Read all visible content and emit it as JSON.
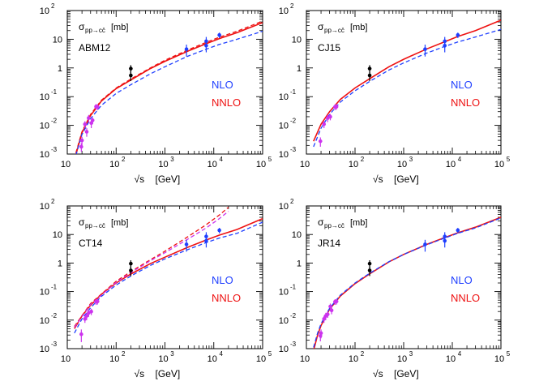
{
  "chart_data": [
    {
      "type": "line",
      "panel_label": "ABM12",
      "ylabel": "σ_{pp→cc̄} [mb]",
      "ylabel_main": "σ",
      "ylabel_sub": "pp→cc̄",
      "ylabel_unit": "[mb]",
      "xlabel_prefix": "√s",
      "xlabel_unit": "[GeV]",
      "xscale": "log",
      "yscale": "log",
      "xlim": [
        10,
        100000
      ],
      "ylim": [
        0.001,
        100
      ],
      "x_ticks": [
        {
          "v": 10,
          "base": "10",
          "exp": ""
        },
        {
          "v": 100,
          "base": "10",
          "exp": "2"
        },
        {
          "v": 1000,
          "base": "10",
          "exp": "3"
        },
        {
          "v": 10000,
          "base": "10",
          "exp": "4"
        },
        {
          "v": 100000,
          "base": "10",
          "exp": "5"
        }
      ],
      "y_ticks": [
        {
          "v": 0.001,
          "base": "10",
          "exp": "-3"
        },
        {
          "v": 0.01,
          "base": "10",
          "exp": "-2"
        },
        {
          "v": 0.1,
          "base": "10",
          "exp": "-1"
        },
        {
          "v": 1,
          "base": "1",
          "exp": ""
        },
        {
          "v": 10,
          "base": "10",
          "exp": ""
        },
        {
          "v": 100,
          "base": "10",
          "exp": "2"
        }
      ],
      "legend": [
        {
          "label": "NLO",
          "color": "#1f3fff"
        },
        {
          "label": "NNLO",
          "color": "#ee1111"
        }
      ],
      "series": [
        {
          "name": "NNLO",
          "color": "#ee1111",
          "style": "solid",
          "x": [
            15,
            20,
            30,
            50,
            100,
            200,
            500,
            1000,
            3000,
            7000,
            13000,
            30000,
            100000
          ],
          "y": [
            0.00095,
            0.0055,
            0.022,
            0.07,
            0.19,
            0.38,
            0.95,
            1.7,
            3.9,
            7.0,
            10.5,
            17,
            38
          ]
        },
        {
          "name": "NNLO band edge",
          "color": "#ee1111",
          "style": "dashed",
          "x": [
            15,
            20,
            30,
            50,
            100,
            200,
            500,
            1000,
            3000,
            7000,
            13000,
            30000,
            100000
          ],
          "y": [
            0.0011,
            0.006,
            0.024,
            0.075,
            0.2,
            0.41,
            1.0,
            1.85,
            4.3,
            7.8,
            11.8,
            19,
            43
          ]
        },
        {
          "name": "NLO",
          "color": "#1f3fff",
          "style": "dashed",
          "x": [
            15,
            20,
            30,
            50,
            100,
            200,
            500,
            1000,
            3000,
            7000,
            13000,
            30000,
            100000
          ],
          "y": [
            0.0009,
            0.0048,
            0.017,
            0.05,
            0.13,
            0.26,
            0.62,
            1.1,
            2.6,
            4.5,
            6.6,
            10,
            19
          ]
        }
      ],
      "data_points": [
        {
          "group": "fixed-target",
          "color": "#cc33ee",
          "x": [
            19.4,
            20,
            23,
            25,
            27.4,
            31,
            33,
            38.8,
            41.6
          ],
          "y": [
            0.0018,
            0.003,
            0.011,
            0.006,
            0.018,
            0.012,
            0.015,
            0.045,
            0.044
          ],
          "err": [
            0.0006,
            0.001,
            0.003,
            0.002,
            0.005,
            0.004,
            0.004,
            0.01,
            0.01
          ]
        },
        {
          "group": "RHIC",
          "color": "#000000",
          "x": [
            200,
            200
          ],
          "y": [
            0.95,
            0.55
          ],
          "err": [
            0.3,
            0.2
          ]
        },
        {
          "group": "LHC",
          "color": "#1f3fff",
          "x": [
            2760,
            7000,
            7000,
            13000
          ],
          "y": [
            4.5,
            6.0,
            8.5,
            14
          ],
          "err": [
            2.0,
            2.5,
            3.5,
            3.0
          ]
        }
      ]
    },
    {
      "type": "line",
      "panel_label": "CJ15",
      "ylabel": "σ_{pp→cc̄} [mb]",
      "ylabel_main": "σ",
      "ylabel_sub": "pp→cc̄",
      "ylabel_unit": "[mb]",
      "xlabel_prefix": "√s",
      "xlabel_unit": "[GeV]",
      "xscale": "log",
      "yscale": "log",
      "xlim": [
        10,
        100000
      ],
      "ylim": [
        0.001,
        100
      ],
      "x_ticks": [
        {
          "v": 10,
          "base": "10",
          "exp": ""
        },
        {
          "v": 100,
          "base": "10",
          "exp": "2"
        },
        {
          "v": 1000,
          "base": "10",
          "exp": "3"
        },
        {
          "v": 10000,
          "base": "10",
          "exp": "4"
        },
        {
          "v": 100000,
          "base": "10",
          "exp": "5"
        }
      ],
      "y_ticks": [
        {
          "v": 0.001,
          "base": "10",
          "exp": "-3"
        },
        {
          "v": 0.01,
          "base": "10",
          "exp": "-2"
        },
        {
          "v": 0.1,
          "base": "10",
          "exp": "-1"
        },
        {
          "v": 1,
          "base": "1",
          "exp": ""
        },
        {
          "v": 10,
          "base": "10",
          "exp": ""
        },
        {
          "v": 100,
          "base": "10",
          "exp": "2"
        }
      ],
      "legend": [
        {
          "label": "NLO",
          "color": "#1f3fff"
        },
        {
          "label": "NNLO",
          "color": "#ee1111"
        }
      ],
      "series": [
        {
          "name": "NNLO",
          "color": "#ee1111",
          "style": "solid",
          "x": [
            14,
            20,
            30,
            50,
            100,
            200,
            500,
            1000,
            3000,
            7000,
            13000,
            30000,
            100000
          ],
          "y": [
            0.0028,
            0.011,
            0.03,
            0.08,
            0.2,
            0.42,
            1.1,
            2.0,
            4.6,
            8.2,
            12.5,
            20,
            46
          ]
        },
        {
          "name": "NLO",
          "color": "#1f3fff",
          "style": "dashed",
          "x": [
            14,
            20,
            30,
            50,
            100,
            200,
            500,
            1000,
            3000,
            7000,
            13000,
            30000,
            100000
          ],
          "y": [
            0.0018,
            0.008,
            0.024,
            0.065,
            0.16,
            0.34,
            0.85,
            1.5,
            3.3,
            5.6,
            8.0,
            12,
            22
          ]
        }
      ],
      "data_points": [
        {
          "group": "fixed-target",
          "color": "#cc33ee",
          "x": [
            19.4,
            23,
            27.4,
            31,
            38.8,
            41.6
          ],
          "y": [
            0.0028,
            0.011,
            0.018,
            0.02,
            0.044,
            0.045
          ],
          "err": [
            0.001,
            0.003,
            0.005,
            0.005,
            0.01,
            0.01
          ]
        },
        {
          "group": "RHIC",
          "color": "#000000",
          "x": [
            200,
            200
          ],
          "y": [
            0.95,
            0.55
          ],
          "err": [
            0.3,
            0.2
          ]
        },
        {
          "group": "LHC",
          "color": "#1f3fff",
          "x": [
            2760,
            7000,
            7000,
            13000
          ],
          "y": [
            4.5,
            6.0,
            8.5,
            14
          ],
          "err": [
            2.0,
            2.5,
            3.5,
            3.0
          ]
        }
      ]
    },
    {
      "type": "line",
      "panel_label": "CT14",
      "ylabel": "σ_{pp→cc̄} [mb]",
      "ylabel_main": "σ",
      "ylabel_sub": "pp→cc̄",
      "ylabel_unit": "[mb]",
      "xlabel_prefix": "√s",
      "xlabel_unit": "[GeV]",
      "xscale": "log",
      "yscale": "log",
      "xlim": [
        10,
        100000
      ],
      "ylim": [
        0.001,
        100
      ],
      "x_ticks": [
        {
          "v": 10,
          "base": "10",
          "exp": ""
        },
        {
          "v": 100,
          "base": "10",
          "exp": "2"
        },
        {
          "v": 1000,
          "base": "10",
          "exp": "3"
        },
        {
          "v": 10000,
          "base": "10",
          "exp": "4"
        },
        {
          "v": 100000,
          "base": "10",
          "exp": "5"
        }
      ],
      "y_ticks": [
        {
          "v": 0.001,
          "base": "10",
          "exp": "-3"
        },
        {
          "v": 0.01,
          "base": "10",
          "exp": "-2"
        },
        {
          "v": 0.1,
          "base": "10",
          "exp": "-1"
        },
        {
          "v": 1,
          "base": "1",
          "exp": ""
        },
        {
          "v": 10,
          "base": "10",
          "exp": ""
        },
        {
          "v": 100,
          "base": "10",
          "exp": "2"
        }
      ],
      "legend": [
        {
          "label": "NLO",
          "color": "#1f3fff"
        },
        {
          "label": "NNLO",
          "color": "#ee1111"
        }
      ],
      "series": [
        {
          "name": "NNLO",
          "color": "#ee1111",
          "style": "solid",
          "x": [
            14,
            20,
            30,
            50,
            100,
            200,
            500,
            1000,
            3000,
            7000,
            13000,
            30000,
            100000
          ],
          "y": [
            0.005,
            0.014,
            0.033,
            0.08,
            0.2,
            0.41,
            0.95,
            1.6,
            3.6,
            6.4,
            9.5,
            15,
            36
          ]
        },
        {
          "name": "NNLO band upper",
          "color": "#ee1111",
          "style": "dashed",
          "x": [
            14,
            30,
            100,
            200,
            500,
            1000,
            3000,
            7000,
            13000,
            20000
          ],
          "y": [
            0.006,
            0.038,
            0.23,
            0.5,
            1.3,
            2.6,
            8.5,
            22,
            48,
            90
          ]
        },
        {
          "name": "NLO band upper",
          "color": "#cc33ee",
          "style": "dashed",
          "x": [
            14,
            30,
            100,
            200,
            500,
            1000,
            3000,
            7000,
            13000,
            20000
          ],
          "y": [
            0.0055,
            0.035,
            0.21,
            0.46,
            1.2,
            2.3,
            7.0,
            17,
            36,
            65
          ]
        },
        {
          "name": "NLO",
          "color": "#1f3fff",
          "style": "dashed",
          "x": [
            14,
            20,
            30,
            50,
            100,
            200,
            500,
            1000,
            3000,
            7000,
            13000,
            30000,
            100000
          ],
          "y": [
            0.0035,
            0.011,
            0.027,
            0.068,
            0.17,
            0.35,
            0.82,
            1.4,
            3.0,
            5.2,
            7.5,
            11,
            27
          ]
        }
      ],
      "data_points": [
        {
          "group": "fixed-target",
          "color": "#cc33ee",
          "x": [
            19.4,
            23,
            25,
            27.4,
            31,
            38.8,
            41.6
          ],
          "y": [
            0.0032,
            0.011,
            0.014,
            0.018,
            0.02,
            0.044,
            0.045
          ],
          "err": [
            0.0015,
            0.003,
            0.004,
            0.005,
            0.005,
            0.01,
            0.01
          ]
        },
        {
          "group": "RHIC",
          "color": "#000000",
          "x": [
            200,
            200
          ],
          "y": [
            0.95,
            0.55
          ],
          "err": [
            0.3,
            0.2
          ]
        },
        {
          "group": "LHC",
          "color": "#1f3fff",
          "x": [
            2760,
            7000,
            7000,
            13000
          ],
          "y": [
            4.5,
            6.0,
            8.5,
            14
          ],
          "err": [
            2.0,
            2.5,
            3.5,
            3.0
          ]
        }
      ]
    },
    {
      "type": "line",
      "panel_label": "JR14",
      "ylabel": "σ_{pp→cc̄} [mb]",
      "ylabel_main": "σ",
      "ylabel_sub": "pp→cc̄",
      "ylabel_unit": "[mb]",
      "xlabel_prefix": "√s",
      "xlabel_unit": "[GeV]",
      "xscale": "log",
      "yscale": "log",
      "xlim": [
        10,
        100000
      ],
      "ylim": [
        0.001,
        100
      ],
      "x_ticks": [
        {
          "v": 10,
          "base": "10",
          "exp": ""
        },
        {
          "v": 100,
          "base": "10",
          "exp": "2"
        },
        {
          "v": 1000,
          "base": "10",
          "exp": "3"
        },
        {
          "v": 10000,
          "base": "10",
          "exp": "4"
        },
        {
          "v": 100000,
          "base": "10",
          "exp": "5"
        }
      ],
      "y_ticks": [
        {
          "v": 0.001,
          "base": "10",
          "exp": "-3"
        },
        {
          "v": 0.01,
          "base": "10",
          "exp": "-2"
        },
        {
          "v": 0.1,
          "base": "10",
          "exp": "-1"
        },
        {
          "v": 1,
          "base": "1",
          "exp": ""
        },
        {
          "v": 10,
          "base": "10",
          "exp": ""
        },
        {
          "v": 100,
          "base": "10",
          "exp": "2"
        }
      ],
      "legend": [
        {
          "label": "NLO",
          "color": "#1f3fff"
        },
        {
          "label": "NNLO",
          "color": "#ee1111"
        }
      ],
      "series": [
        {
          "name": "NNLO",
          "color": "#ee1111",
          "style": "solid",
          "x": [
            14,
            17,
            20,
            30,
            50,
            100,
            200,
            500,
            1000,
            3000,
            7000,
            13000,
            30000,
            100000
          ],
          "y": [
            0.00085,
            0.003,
            0.0065,
            0.024,
            0.07,
            0.19,
            0.42,
            1.1,
            2.0,
            4.5,
            7.8,
            11.5,
            18,
            40
          ]
        },
        {
          "name": "NLO",
          "color": "#1f3fff",
          "style": "dashed",
          "x": [
            14,
            17,
            20,
            30,
            50,
            100,
            200,
            500,
            1000,
            3000,
            7000,
            13000,
            30000,
            100000
          ],
          "y": [
            0.0011,
            0.0035,
            0.0075,
            0.026,
            0.075,
            0.2,
            0.44,
            1.12,
            2.0,
            4.4,
            7.5,
            11,
            17,
            38
          ]
        }
      ],
      "data_points": [
        {
          "group": "fixed-target",
          "color": "#cc33ee",
          "x": [
            19.4,
            20,
            23,
            25,
            27.4,
            31,
            33,
            38.8,
            41.6
          ],
          "y": [
            0.0028,
            0.0035,
            0.011,
            0.014,
            0.016,
            0.03,
            0.022,
            0.044,
            0.045
          ],
          "err": [
            0.001,
            0.0012,
            0.003,
            0.004,
            0.004,
            0.008,
            0.006,
            0.01,
            0.01
          ]
        },
        {
          "group": "RHIC",
          "color": "#000000",
          "x": [
            200,
            200
          ],
          "y": [
            0.95,
            0.55
          ],
          "err": [
            0.3,
            0.2
          ]
        },
        {
          "group": "LHC",
          "color": "#1f3fff",
          "x": [
            2760,
            7000,
            7000,
            13000
          ],
          "y": [
            4.5,
            6.0,
            8.5,
            14
          ],
          "err": [
            2.0,
            2.5,
            3.5,
            3.0
          ]
        }
      ]
    }
  ]
}
